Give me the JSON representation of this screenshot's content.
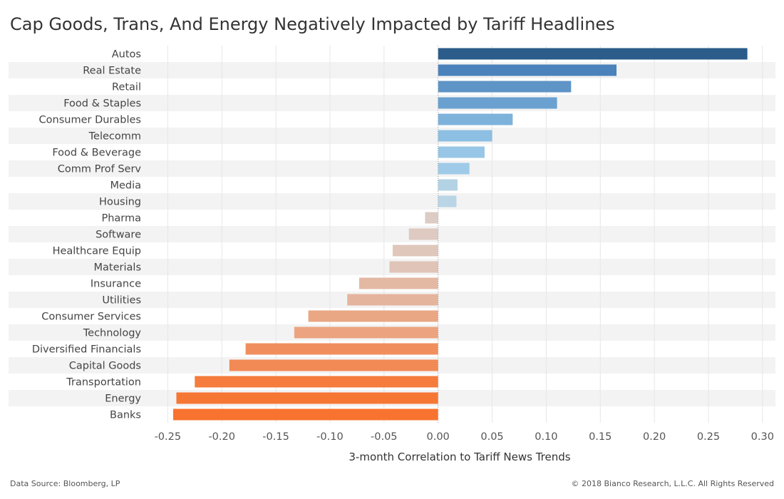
{
  "chart_data": {
    "type": "bar",
    "orientation": "horizontal",
    "title": "Cap Goods, Trans, And Energy Negatively Impacted by Tariff Headlines",
    "xlabel": "3-month Correlation to Tariff News Trends",
    "ylabel": "",
    "xlim": [
      -0.27,
      0.31
    ],
    "xticks": [
      -0.25,
      -0.2,
      -0.15,
      -0.1,
      -0.05,
      0.0,
      0.05,
      0.1,
      0.15,
      0.2,
      0.25,
      0.3
    ],
    "xtick_labels": [
      "-0.25",
      "-0.20",
      "-0.15",
      "-0.10",
      "-0.05",
      "0.00",
      "0.05",
      "0.10",
      "0.15",
      "0.20",
      "0.25",
      "0.30"
    ],
    "grid": "vertical",
    "categories": [
      "Autos",
      "Real Estate",
      "Retail",
      "Food & Staples",
      "Consumer Durables",
      "Telecomm",
      "Food & Beverage",
      "Comm Prof Serv",
      "Media",
      "Housing",
      "Pharma",
      "Software",
      "Healthcare Equip",
      "Materials",
      "Insurance",
      "Utilities",
      "Consumer Services",
      "Technology",
      "Diversified Financials",
      "Capital Goods",
      "Transportation",
      "Energy",
      "Banks"
    ],
    "values": [
      0.286,
      0.165,
      0.123,
      0.11,
      0.069,
      0.05,
      0.043,
      0.029,
      0.018,
      0.017,
      -0.012,
      -0.027,
      -0.042,
      -0.045,
      -0.073,
      -0.084,
      -0.12,
      -0.133,
      -0.178,
      -0.193,
      -0.225,
      -0.242,
      -0.245
    ],
    "colors": [
      "#2b5c8a",
      "#4b82bb",
      "#5f94c6",
      "#6aa1d0",
      "#7db2db",
      "#8dbfe3",
      "#97c6e6",
      "#9fcbe8",
      "#b3d3e5",
      "#b9d5e6",
      "#dcccc4",
      "#decac0",
      "#dfc7bb",
      "#e0c4b7",
      "#e3b9a4",
      "#e5b49d",
      "#e9a784",
      "#eba47f",
      "#f08f5d",
      "#f28a55",
      "#f57c3c",
      "#f67734",
      "#f87330"
    ],
    "zero_line_color": "#999999",
    "band_color": "#f3f3f3"
  },
  "footer": {
    "source": "Data Source: Bloomberg, LP",
    "copyright": "© 2018 Bianco Research, L.L.C. All Rights Reserved"
  }
}
